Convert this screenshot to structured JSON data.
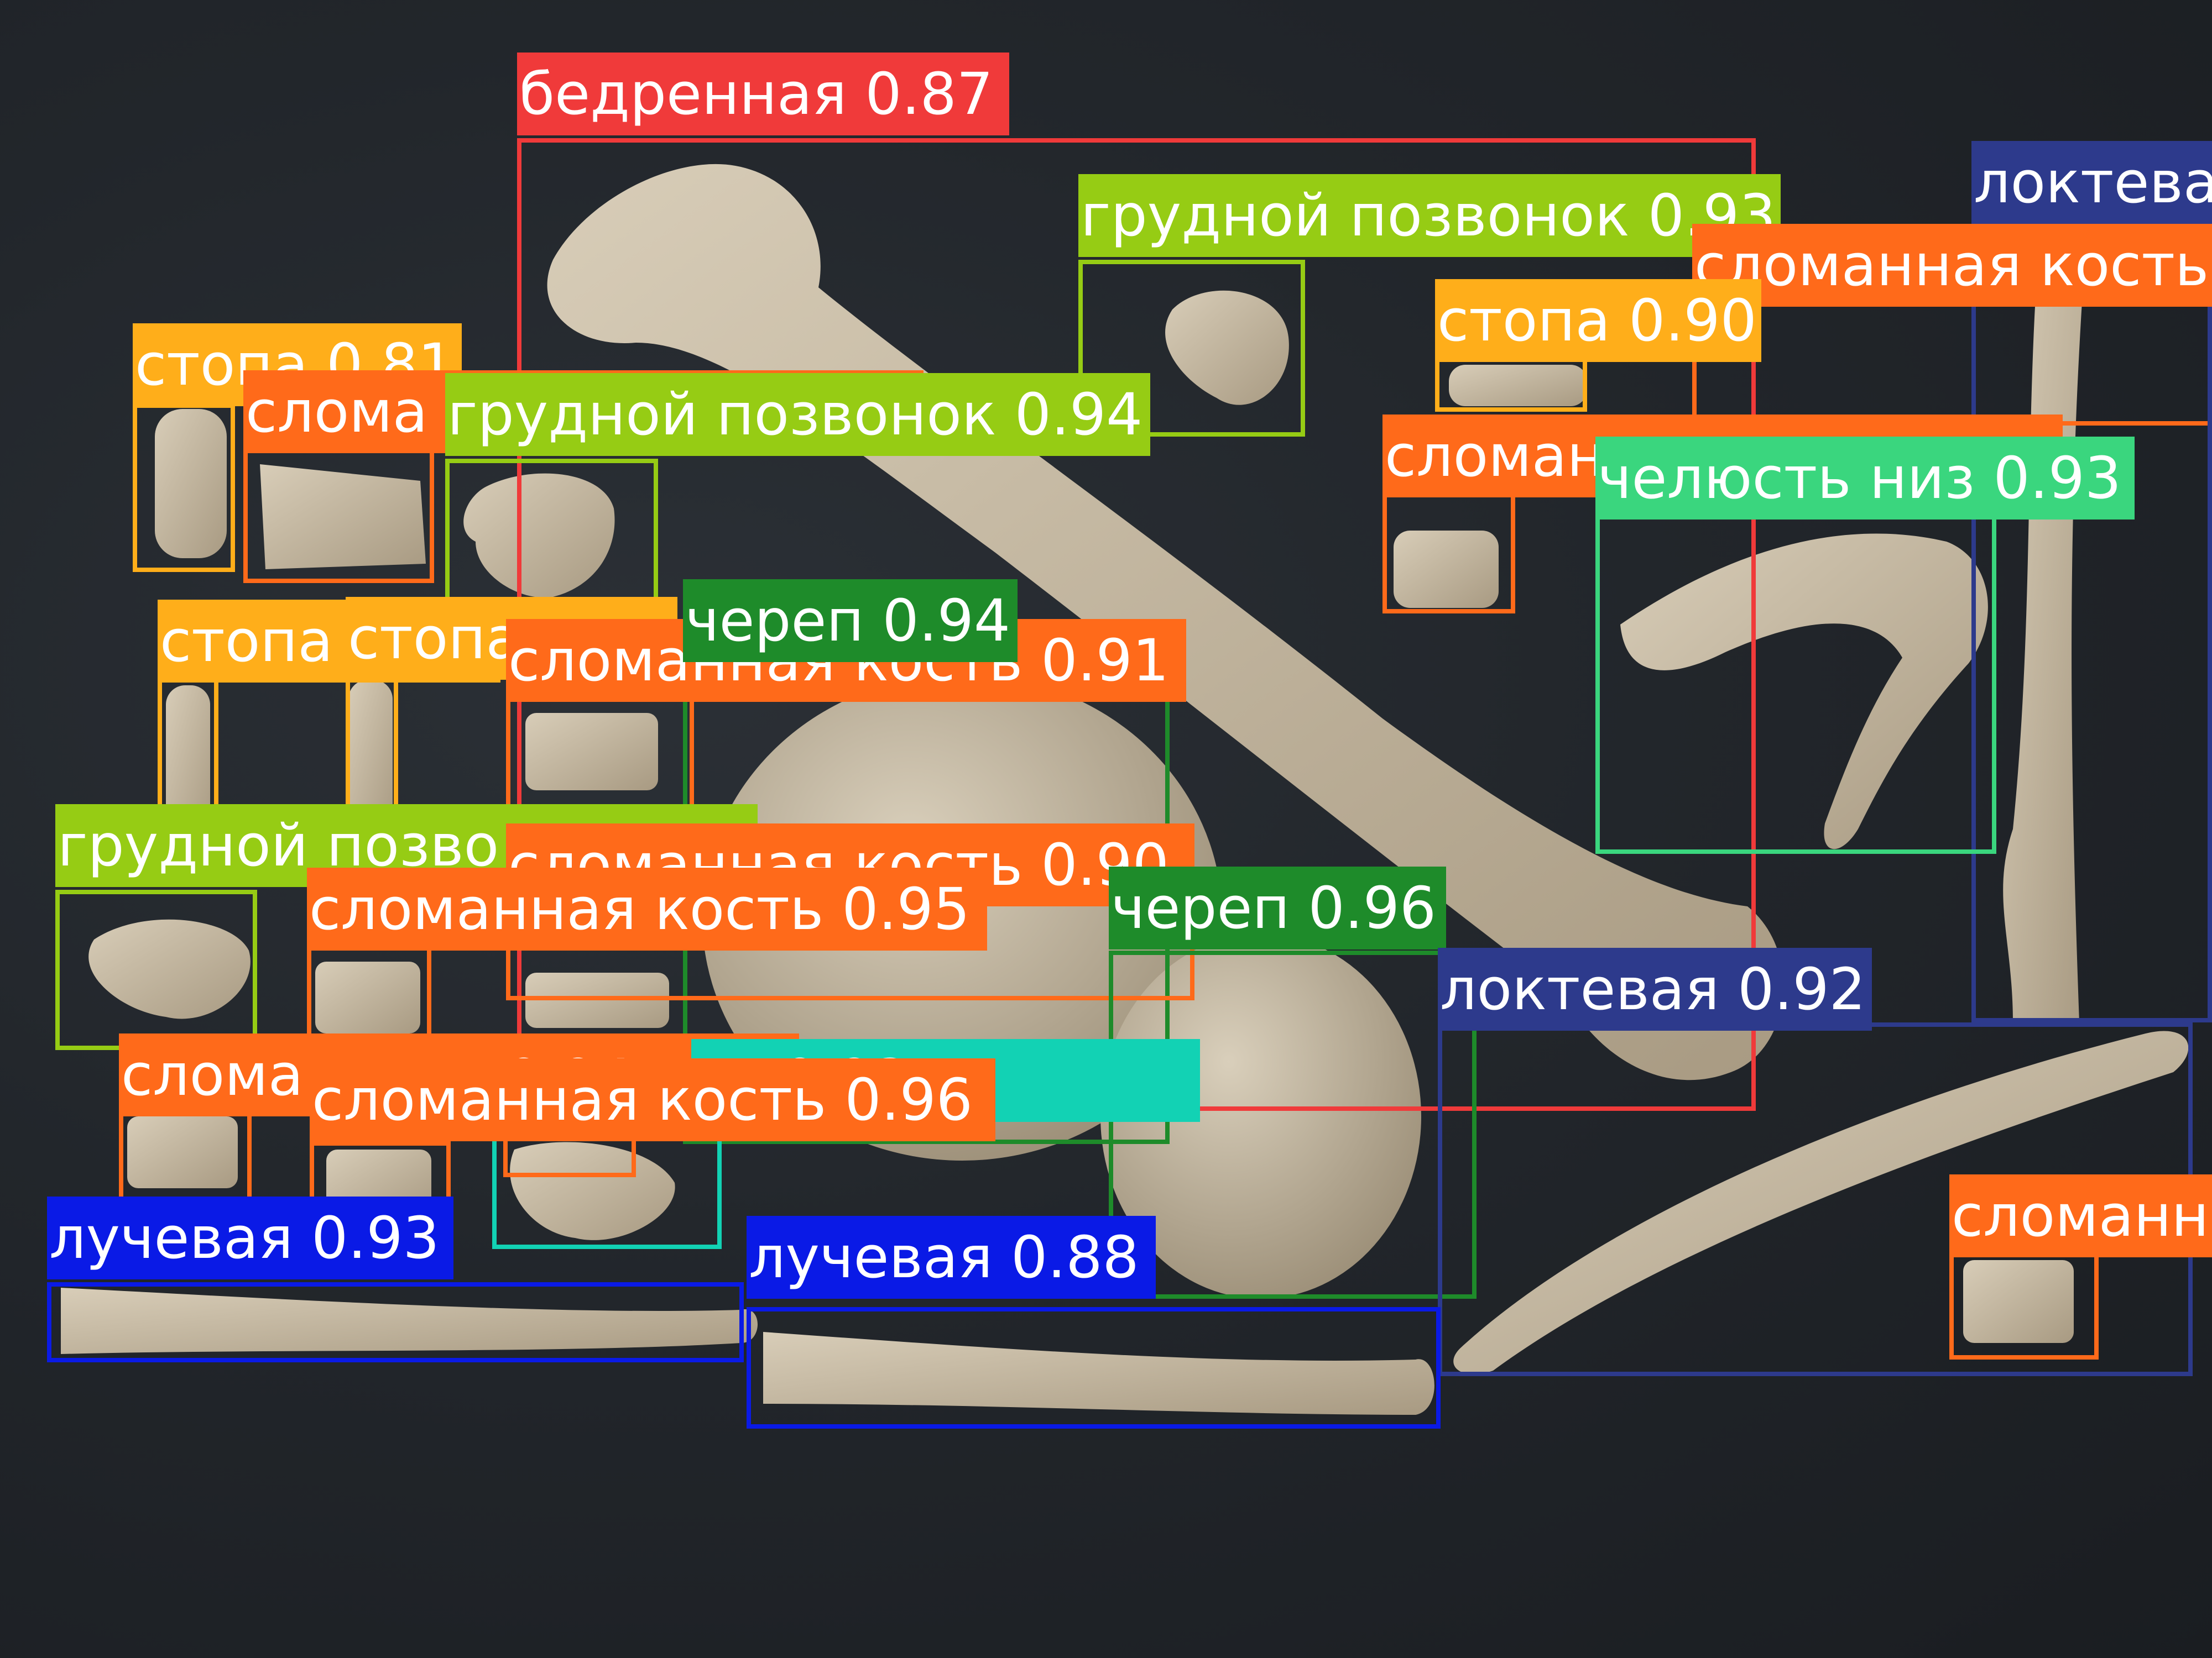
{
  "palette": {
    "red": "#f03a3a",
    "orange": "#ff6a1a",
    "amber": "#ffae1a",
    "lime": "#96cc14",
    "green": "#1e8b2a",
    "mint": "#3ad67e",
    "teal": "#12d2b4",
    "navy": "#2d3a8c",
    "blue": "#0a1ae6"
  },
  "detections": [
    {
      "label": "бедренная 0.87",
      "color": "red",
      "icon": "femur-icon"
    },
    {
      "label": "грудной позвонок 0.93",
      "color": "lime",
      "icon": "vertebra-icon"
    },
    {
      "label": "сломанная кость",
      "color": "orange",
      "icon": "bone-fragment-icon"
    },
    {
      "label": "локтева",
      "color": "navy",
      "icon": "ulna-icon"
    },
    {
      "label": "стопа 0.90",
      "color": "amber",
      "icon": "foot-bone-icon"
    },
    {
      "label": "стопа 0.81",
      "color": "amber",
      "icon": "foot-bone-icon"
    },
    {
      "label": "слома",
      "color": "orange",
      "icon": "bone-fragment-icon"
    },
    {
      "label": "грудной позвонок 0.94",
      "color": "lime",
      "icon": "vertebra-icon"
    },
    {
      "label": "сломан",
      "color": "orange",
      "icon": "bone-fragment-icon"
    },
    {
      "label": "челюсть низ 0.93",
      "color": "mint",
      "icon": "mandible-icon"
    },
    {
      "label": "стопа 0.90",
      "color": "amber",
      "icon": "foot-bone-icon"
    },
    {
      "label": "стопа",
      "color": "amber",
      "icon": "foot-bone-icon"
    },
    {
      "label": "сломанная кость 0.91",
      "color": "orange",
      "icon": "bone-fragment-icon"
    },
    {
      "label": "череп 0.94",
      "color": "green",
      "icon": "skull-icon"
    },
    {
      "label": "грудной позво",
      "color": "lime",
      "icon": "vertebra-icon"
    },
    {
      "label": "сломанная кость 0.90",
      "color": "orange",
      "icon": "bone-fragment-icon"
    },
    {
      "label": "сломанная кость 0.95",
      "color": "orange",
      "icon": "bone-fragment-icon"
    },
    {
      "label": "череп 0.96",
      "color": "green",
      "icon": "skull-icon"
    },
    {
      "label": "локтевая 0.92",
      "color": "navy",
      "icon": "ulna-icon"
    },
    {
      "label": "слома",
      "color": "orange",
      "icon": "bone-fragment-icon"
    },
    {
      "label": "0.94",
      "color": "orange",
      "icon": "bone-fragment-icon"
    },
    {
      "label": "ок 0.93",
      "color": "teal",
      "icon": "vertebra-icon"
    },
    {
      "label": "сломанная кость 0.96",
      "color": "orange",
      "icon": "bone-fragment-icon"
    },
    {
      "label": "сломанн",
      "color": "orange",
      "icon": "bone-fragment-icon"
    },
    {
      "label": "лучевая 0.93",
      "color": "blue",
      "icon": "radius-icon"
    },
    {
      "label": "лучевая 0.88",
      "color": "blue",
      "icon": "radius-icon"
    }
  ]
}
